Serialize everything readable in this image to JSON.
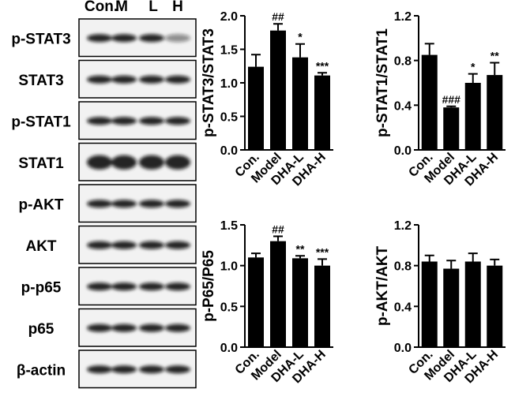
{
  "blot": {
    "lanes": [
      "Con.",
      "M",
      "L",
      "H"
    ],
    "rows": [
      "p-STAT3",
      "STAT3",
      "p-STAT1",
      "STAT1",
      "p-AKT",
      "AKT",
      "p-p65",
      "p65",
      "β-actin"
    ]
  },
  "chart_data": [
    {
      "type": "bar",
      "ylabel": "p-STAT3/STAT3",
      "categories": [
        "Con.",
        "Model",
        "DHA-L",
        "DHA-H"
      ],
      "values": [
        1.24,
        1.78,
        1.38,
        1.11
      ],
      "errors": [
        0.18,
        0.1,
        0.2,
        0.04
      ],
      "annotations": [
        null,
        "##",
        "*",
        "***"
      ],
      "color": "#000000",
      "ylim": [
        0,
        2.0
      ],
      "yticks": [
        {
          "value": 0,
          "label": "0.0"
        },
        0.5,
        {
          "value": 1,
          "label": "1.0"
        },
        1.5,
        {
          "value": 2,
          "label": "2.0"
        }
      ]
    },
    {
      "type": "bar",
      "ylabel": "p-STAT1/STAT1",
      "categories": [
        "Con.",
        "Model",
        "DHA-L",
        "DHA-H"
      ],
      "values": [
        0.85,
        0.38,
        0.6,
        0.67
      ],
      "errors": [
        0.1,
        0.01,
        0.08,
        0.11
      ],
      "annotations": [
        null,
        "###",
        "*",
        "**"
      ],
      "color": "#000000",
      "ylim": [
        0,
        1.2
      ],
      "yticks": [
        {
          "value": 0,
          "label": "0.0"
        },
        0.4,
        0.8,
        1.2
      ]
    },
    {
      "type": "bar",
      "ylabel": "p-P65/P65",
      "categories": [
        "Con.",
        "Model",
        "DHA-L",
        "DHA-H"
      ],
      "values": [
        1.1,
        1.3,
        1.09,
        1.0
      ],
      "errors": [
        0.05,
        0.06,
        0.03,
        0.08
      ],
      "annotations": [
        null,
        "##",
        "**",
        "***"
      ],
      "color": "#000000",
      "ylim": [
        0,
        1.5
      ],
      "yticks": [
        {
          "value": 0,
          "label": "0.0"
        },
        0.5,
        {
          "value": 1,
          "label": "1.0"
        },
        1.5
      ]
    },
    {
      "type": "bar",
      "ylabel": "p-AKT/AKT",
      "categories": [
        "Con.",
        "Model",
        "DHA-L",
        "DHA-H"
      ],
      "values": [
        0.84,
        0.77,
        0.84,
        0.8
      ],
      "errors": [
        0.06,
        0.08,
        0.08,
        0.06
      ],
      "color": "#000000",
      "ylim": [
        0,
        1.2
      ],
      "yticks": [
        {
          "value": 0,
          "label": "0.0"
        },
        0.4,
        0.8,
        1.2
      ]
    }
  ]
}
